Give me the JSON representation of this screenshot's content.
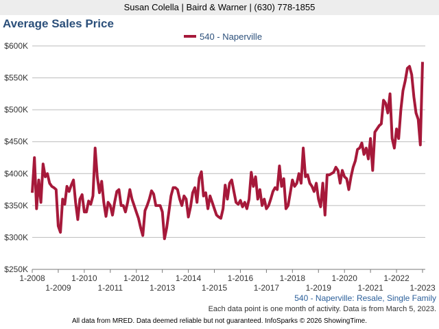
{
  "header": {
    "agent": "Susan Colella | Baird & Warner | (630) 778-1855"
  },
  "chart_data": {
    "type": "line",
    "title": "Average Sales Price",
    "series": [
      {
        "name": "540 - Naperville",
        "color": "#a6193a",
        "values": [
          370,
          425,
          345,
          390,
          355,
          415,
          395,
          400,
          385,
          380,
          378,
          375,
          318,
          308,
          360,
          352,
          380,
          372,
          382,
          390,
          355,
          328,
          360,
          367,
          340,
          340,
          357,
          352,
          365,
          440,
          395,
          370,
          388,
          355,
          333,
          355,
          350,
          335,
          355,
          372,
          375,
          350,
          350,
          340,
          355,
          375,
          360,
          350,
          340,
          330,
          315,
          303,
          342,
          350,
          360,
          373,
          368,
          350,
          350,
          350,
          340,
          298,
          315,
          340,
          365,
          378,
          378,
          375,
          360,
          350,
          365,
          360,
          332,
          348,
          370,
          378,
          355,
          393,
          403,
          365,
          370,
          345,
          365,
          355,
          345,
          335,
          332,
          330,
          345,
          382,
          360,
          385,
          390,
          372,
          355,
          352,
          358,
          348,
          355,
          345,
          360,
          402,
          380,
          395,
          360,
          375,
          350,
          360,
          345,
          350,
          360,
          372,
          378,
          375,
          412,
          380,
          392,
          345,
          350,
          370,
          390,
          380,
          385,
          400,
          385,
          440,
          395,
          398,
          385,
          380,
          372,
          385,
          360,
          348,
          385,
          335,
          398,
          398,
          400,
          402,
          410,
          405,
          385,
          405,
          395,
          392,
          375,
          395,
          410,
          420,
          438,
          440,
          448,
          430,
          440,
          423,
          455,
          405,
          465,
          470,
          475,
          478,
          515,
          510,
          495,
          525,
          455,
          440,
          470,
          455,
          500,
          530,
          545,
          565,
          568,
          555,
          520,
          495,
          485,
          445,
          575
        ]
      }
    ],
    "x_start": "1-2008",
    "x_interval": "monthly",
    "ylim": [
      250000,
      600000
    ],
    "yticks": [
      "$250K",
      "$300K",
      "$350K",
      "$400K",
      "$450K",
      "$500K",
      "$550K",
      "$600K"
    ],
    "xticks_top": [
      "1-2008",
      "1-2010",
      "1-2012",
      "1-2014",
      "1-2016",
      "1-2018",
      "1-2020",
      "1-2022"
    ],
    "xticks_bottom": [
      "1-2009",
      "1-2011",
      "1-2013",
      "1-2015",
      "1-2017",
      "1-2019",
      "1-2021",
      "1-2023"
    ],
    "grid": true,
    "legend": "top-center"
  },
  "footer": {
    "series_desc": "540 - Naperville: Resale, Single Family",
    "note": "Each data point is one month of activity. Data is from March 5, 2023.",
    "disclaimer": "All data from MRED. Data deemed reliable but not guaranteed. InfoSparks © 2026 ShowingTime."
  }
}
